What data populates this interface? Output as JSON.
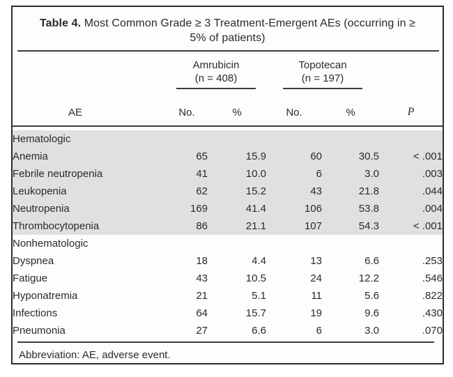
{
  "table": {
    "title_prefix": "Table 4.",
    "title_rest": " Most Common Grade ≥ 3 Treatment-Emergent AEs (occurring in ≥ 5% of patients)",
    "groups": [
      {
        "name": "Amrubicin",
        "n_label": "(n = 408)"
      },
      {
        "name": "Topotecan",
        "n_label": "(n = 197)"
      }
    ],
    "columns": {
      "ae": "AE",
      "no": "No.",
      "pct": "%",
      "p": "P"
    },
    "sections": [
      {
        "label": "Hematologic",
        "rows": [
          {
            "ae": "Anemia",
            "amr_no": "65",
            "amr_pct": "15.9",
            "top_no": "60",
            "top_pct": "30.5",
            "p": "< .001"
          },
          {
            "ae": "Febrile neutropenia",
            "amr_no": "41",
            "amr_pct": "10.0",
            "top_no": "6",
            "top_pct": "3.0",
            "p": ".003"
          },
          {
            "ae": "Leukopenia",
            "amr_no": "62",
            "amr_pct": "15.2",
            "top_no": "43",
            "top_pct": "21.8",
            "p": ".044"
          },
          {
            "ae": "Neutropenia",
            "amr_no": "169",
            "amr_pct": "41.4",
            "top_no": "106",
            "top_pct": "53.8",
            "p": ".004"
          },
          {
            "ae": "Thrombocytopenia",
            "amr_no": "86",
            "amr_pct": "21.1",
            "top_no": "107",
            "top_pct": "54.3",
            "p": "< .001"
          }
        ]
      },
      {
        "label": "Nonhematologic",
        "rows": [
          {
            "ae": "Dyspnea",
            "amr_no": "18",
            "amr_pct": "4.4",
            "top_no": "13",
            "top_pct": "6.6",
            "p": ".253"
          },
          {
            "ae": "Fatigue",
            "amr_no": "43",
            "amr_pct": "10.5",
            "top_no": "24",
            "top_pct": "12.2",
            "p": ".546"
          },
          {
            "ae": "Hyponatremia",
            "amr_no": "21",
            "amr_pct": "5.1",
            "top_no": "11",
            "top_pct": "5.6",
            "p": ".822"
          },
          {
            "ae": "Infections",
            "amr_no": "64",
            "amr_pct": "15.7",
            "top_no": "19",
            "top_pct": "9.6",
            "p": ".430"
          },
          {
            "ae": "Pneumonia",
            "amr_no": "27",
            "amr_pct": "6.6",
            "top_no": "6",
            "top_pct": "3.0",
            "p": ".070"
          }
        ]
      }
    ],
    "footnote": "Abbreviation: AE, adverse event."
  },
  "colors": {
    "section_band": "#e0e0e0",
    "rule": "#3c3c3c",
    "text": "#2a2a2a",
    "card_background": "#fdfdfd"
  }
}
